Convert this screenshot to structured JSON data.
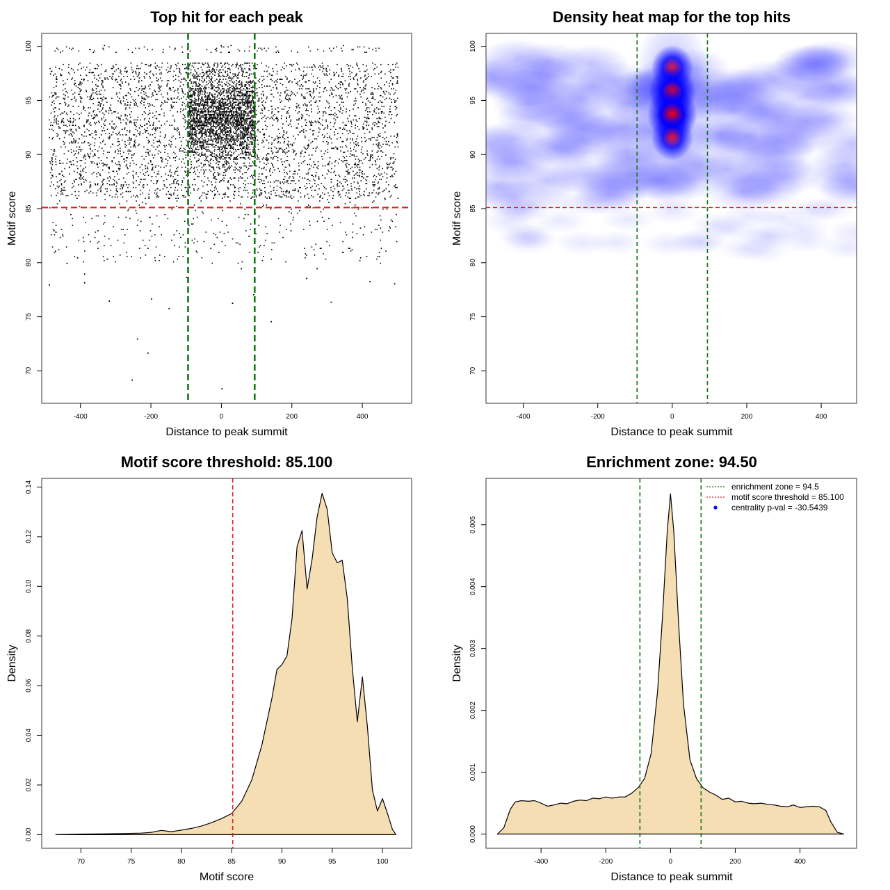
{
  "chart_data": [
    {
      "type": "scatter",
      "title": "Top hit for each peak",
      "xlabel": "Distance to peak summit",
      "ylabel": "Motif score",
      "xlim": [
        -510,
        540
      ],
      "ylim": [
        67,
        101.2
      ],
      "xticks": [
        "-400",
        "-200",
        "0",
        "200",
        "400"
      ],
      "yticks": [
        "70",
        "75",
        "80",
        "85",
        "90",
        "95",
        "100"
      ],
      "hlines": [
        {
          "y": 85.1,
          "color": "#dd2222",
          "style": "dashed"
        }
      ],
      "vlines": [
        {
          "x": -94.5,
          "color": "#117711",
          "style": "dashed"
        },
        {
          "x": 94.5,
          "color": "#117711",
          "style": "dashed"
        }
      ],
      "point_clusters": [
        {
          "x_range": [
            -490,
            500
          ],
          "y_range": [
            86,
            98.5
          ],
          "count": 3800
        },
        {
          "x_range": [
            -95,
            95
          ],
          "y_range": [
            88,
            98.5
          ],
          "count": 2400
        },
        {
          "x_range": [
            -490,
            500
          ],
          "y_range": [
            80,
            86
          ],
          "count": 320
        },
        {
          "x_range": [
            -490,
            500
          ],
          "y_range": [
            99.5,
            100.1
          ],
          "count": 90
        }
      ],
      "outliers": [
        [
          -490,
          78
        ],
        [
          -255,
          69.2
        ],
        [
          0,
          68.4
        ],
        [
          -240,
          73
        ],
        [
          -200,
          76.7
        ],
        [
          140,
          74.6
        ],
        [
          -150,
          75.8
        ],
        [
          -210,
          71.7
        ],
        [
          310,
          76.4
        ],
        [
          -320,
          76.5
        ],
        [
          -390,
          78.2
        ],
        [
          420,
          78.3
        ],
        [
          490,
          78.1
        ],
        [
          -390,
          79
        ],
        [
          55,
          79.5
        ],
        [
          -440,
          80
        ],
        [
          -410,
          80.5
        ],
        [
          240,
          78.6
        ],
        [
          90,
          77.1
        ],
        [
          30,
          76.3
        ],
        [
          -100,
          78.7
        ],
        [
          270,
          79.5
        ]
      ]
    },
    {
      "type": "heatmap",
      "title": "Density heat map for the top hits",
      "xlabel": "Distance to peak summit",
      "ylabel": "Motif score",
      "xlim": [
        -500,
        495
      ],
      "ylim": [
        67,
        101.2
      ],
      "xticks": [
        "-400",
        "-200",
        "0",
        "200",
        "400"
      ],
      "yticks": [
        "70",
        "75",
        "80",
        "85",
        "90",
        "95",
        "100"
      ],
      "colormap": [
        "#ffffff",
        "#0000ff",
        "#ff0000"
      ],
      "hlines": [
        {
          "y": 85.1,
          "color": "#dd2222",
          "style": "dashed"
        }
      ],
      "vlines": [
        {
          "x": -94.5,
          "color": "#117711",
          "style": "dashed"
        },
        {
          "x": 94.5,
          "color": "#117711",
          "style": "dashed"
        }
      ],
      "hotspots": [
        {
          "x": 0,
          "y": 98,
          "intensity": 0.6
        },
        {
          "x": 0,
          "y": 95.8,
          "intensity": 0.85
        },
        {
          "x": 0,
          "y": 93.7,
          "intensity": 1.0
        },
        {
          "x": 0,
          "y": 91.6,
          "intensity": 0.6
        }
      ]
    },
    {
      "type": "area",
      "title": "Motif score threshold: 85.100",
      "xlabel": "Motif score",
      "ylabel": "Density",
      "xlim": [
        66.1,
        102.9
      ],
      "ylim": [
        -0.0055,
        0.1435
      ],
      "xticks": [
        "70",
        "75",
        "80",
        "85",
        "90",
        "95",
        "100"
      ],
      "yticks": [
        "0.00",
        "0.02",
        "0.04",
        "0.06",
        "0.08",
        "0.10",
        "0.12",
        "0.14"
      ],
      "fill": "#f5deb3",
      "vlines": [
        {
          "x": 85.1,
          "color": "#dd2222",
          "style": "dashed"
        }
      ],
      "x": [
        67.5,
        70,
        72,
        74,
        76,
        77,
        78,
        79,
        80,
        81,
        82,
        83,
        84,
        85,
        86,
        87,
        88,
        89,
        89.5,
        90,
        90.5,
        91,
        91.5,
        92,
        92.5,
        93,
        93.5,
        94,
        94.5,
        95,
        95.5,
        96,
        96.5,
        97,
        97.5,
        98,
        98.5,
        99,
        99.5,
        100,
        100.5,
        101,
        101.3
      ],
      "y": [
        0.0,
        0.0002,
        0.0003,
        0.0004,
        0.0006,
        0.0009,
        0.0017,
        0.0012,
        0.0018,
        0.0025,
        0.0035,
        0.0048,
        0.0065,
        0.0085,
        0.0135,
        0.022,
        0.036,
        0.055,
        0.0665,
        0.0685,
        0.072,
        0.087,
        0.116,
        0.1225,
        0.099,
        0.111,
        0.128,
        0.1375,
        0.131,
        0.1135,
        0.1095,
        0.1105,
        0.095,
        0.067,
        0.0455,
        0.0635,
        0.0435,
        0.018,
        0.0095,
        0.0145,
        0.0085,
        0.002,
        0.0003
      ]
    },
    {
      "type": "area",
      "title": "Enrichment zone: 94.50",
      "xlabel": "Distance to peak summit",
      "ylabel": "Density",
      "xlim": [
        -570,
        575
      ],
      "ylim": [
        -0.00023,
        0.00575
      ],
      "xticks": [
        "-400",
        "-200",
        "0",
        "200",
        "400"
      ],
      "yticks": [
        "0.000",
        "0.001",
        "0.002",
        "0.003",
        "0.004",
        "0.005"
      ],
      "fill": "#f5deb3",
      "vlines": [
        {
          "x": -94.5,
          "color": "#117711",
          "style": "dashed"
        },
        {
          "x": 94.5,
          "color": "#117711",
          "style": "dashed"
        }
      ],
      "x": [
        -535,
        -515,
        -495,
        -480,
        -460,
        -440,
        -420,
        -400,
        -380,
        -360,
        -340,
        -320,
        -300,
        -280,
        -260,
        -240,
        -220,
        -200,
        -180,
        -160,
        -140,
        -120,
        -100,
        -80,
        -60,
        -40,
        -25,
        -10,
        0,
        10,
        25,
        40,
        60,
        80,
        100,
        120,
        140,
        160,
        180,
        200,
        220,
        240,
        260,
        280,
        300,
        320,
        340,
        360,
        380,
        400,
        420,
        440,
        460,
        480,
        495,
        515,
        535
      ],
      "y": [
        0.0,
        0.0001,
        0.0004,
        0.00052,
        0.00054,
        0.00053,
        0.00054,
        0.0005,
        0.00045,
        0.00047,
        0.0005,
        0.00049,
        0.00053,
        0.00055,
        0.00054,
        0.00058,
        0.00057,
        0.0006,
        0.00058,
        0.0006,
        0.0006,
        0.00066,
        0.00075,
        0.0009,
        0.0013,
        0.0023,
        0.0035,
        0.0049,
        0.0055,
        0.0049,
        0.0034,
        0.0021,
        0.0012,
        0.0009,
        0.00075,
        0.00068,
        0.00063,
        0.00056,
        0.00058,
        0.00052,
        0.00053,
        0.0005,
        0.00049,
        0.0005,
        0.00048,
        0.00047,
        0.00045,
        0.00044,
        0.00047,
        0.00043,
        0.00044,
        0.00045,
        0.00044,
        0.00038,
        0.0002,
        3e-05,
        0.0
      ],
      "legend": {
        "placement": "top-right",
        "entries": [
          {
            "label": "enrichment zone = 94.5",
            "color": "#117711",
            "style": "dotted-line"
          },
          {
            "label": "motif score threshold = 85.100",
            "color": "#dd2222",
            "style": "dotted-line"
          },
          {
            "label": "centrality p-val = -30.5439",
            "color": "#0000ff",
            "style": "point"
          }
        ]
      }
    }
  ]
}
